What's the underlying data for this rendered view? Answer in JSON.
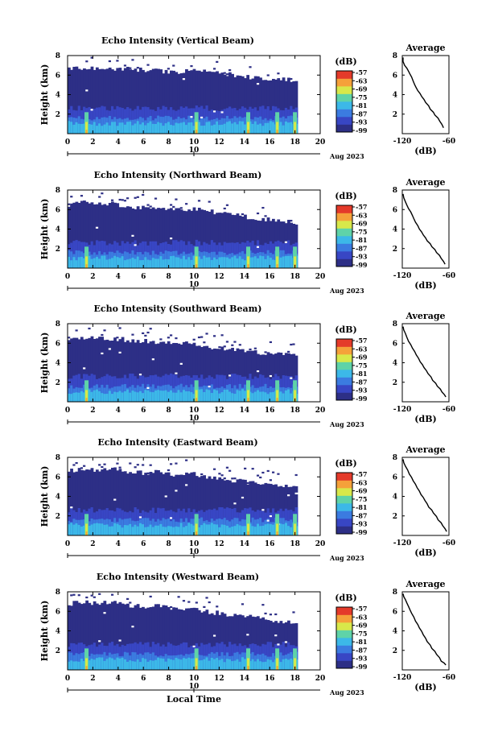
{
  "chart_data": [
    {
      "type": "heatmap",
      "title": "Echo Intensity (Vertical Beam)",
      "ylabel": "Height (km)",
      "ylim": [
        0,
        8
      ],
      "yticks": [
        2,
        4,
        6,
        8
      ],
      "xlim": [
        0,
        20
      ],
      "xticks": [
        0,
        2,
        4,
        6,
        8,
        10,
        12,
        14,
        16,
        18,
        20
      ],
      "date_marker": "10",
      "date_label": "Aug 2023",
      "top_profile": [
        6.7,
        6.7,
        6.6,
        6.7,
        6.6,
        6.5,
        6.4,
        6.3,
        6.5,
        6.3,
        6.2,
        6.0,
        5.8,
        5.7,
        5.6,
        5.5
      ],
      "colorbar": {
        "unit": "(dB)",
        "levels": [
          "-57",
          "-63",
          "-69",
          "-75",
          "-81",
          "-87",
          "-93",
          "-99"
        ]
      },
      "average_profile": {
        "title": "Average",
        "xlabel": "(dB)",
        "xlim": [
          -120,
          -60
        ],
        "xticks": [
          "-120",
          "-60"
        ],
        "yticks": [
          2,
          4,
          6,
          8
        ],
        "points": [
          [
            -119,
            7.8
          ],
          [
            -117,
            7.0
          ],
          [
            -112,
            6.4
          ],
          [
            -108,
            5.8
          ],
          [
            -104,
            5.0
          ],
          [
            -100,
            4.4
          ],
          [
            -95,
            3.8
          ],
          [
            -90,
            3.2
          ],
          [
            -84,
            2.5
          ],
          [
            -78,
            1.9
          ],
          [
            -72,
            1.3
          ],
          [
            -67,
            0.6
          ]
        ]
      }
    },
    {
      "type": "heatmap",
      "title": "Echo Intensity (Northward Beam)",
      "ylabel": "Height (km)",
      "ylim": [
        0,
        8
      ],
      "yticks": [
        2,
        4,
        6,
        8
      ],
      "xlim": [
        0,
        20
      ],
      "xticks": [
        0,
        2,
        4,
        6,
        8,
        10,
        12,
        14,
        16,
        18,
        20
      ],
      "date_marker": "10",
      "date_label": "Aug 2023",
      "top_profile": [
        6.4,
        6.7,
        6.5,
        6.6,
        6.3,
        6.2,
        6.3,
        6.0,
        6.1,
        5.9,
        5.6,
        5.4,
        5.2,
        5.0,
        4.8,
        4.7
      ],
      "colorbar": {
        "unit": "(dB)",
        "levels": [
          "-57",
          "-63",
          "-69",
          "-75",
          "-81",
          "-87",
          "-93",
          "-99"
        ]
      },
      "average_profile": {
        "title": "Average",
        "xlabel": "(dB)",
        "xlim": [
          -120,
          -60
        ],
        "xticks": [
          "-120",
          "-60"
        ],
        "yticks": [
          2,
          4,
          6,
          8
        ],
        "points": [
          [
            -119,
            7.6
          ],
          [
            -116,
            6.8
          ],
          [
            -112,
            6.1
          ],
          [
            -107,
            5.4
          ],
          [
            -103,
            4.7
          ],
          [
            -98,
            4.0
          ],
          [
            -93,
            3.4
          ],
          [
            -88,
            2.8
          ],
          [
            -82,
            2.2
          ],
          [
            -76,
            1.6
          ],
          [
            -70,
            1.0
          ],
          [
            -65,
            0.4
          ]
        ]
      }
    },
    {
      "type": "heatmap",
      "title": "Echo Intensity (Southward Beam)",
      "ylabel": "Height (km)",
      "ylim": [
        0,
        8
      ],
      "yticks": [
        2,
        4,
        6,
        8
      ],
      "xlim": [
        0,
        20
      ],
      "xticks": [
        0,
        2,
        4,
        6,
        8,
        10,
        12,
        14,
        16,
        18,
        20
      ],
      "date_marker": "10",
      "date_label": "Aug 2023",
      "top_profile": [
        6.3,
        6.6,
        6.5,
        6.5,
        6.3,
        6.2,
        6.0,
        6.1,
        6.0,
        5.6,
        5.5,
        5.3,
        5.1,
        5.0,
        4.8,
        4.7
      ],
      "colorbar": {
        "unit": "(dB)",
        "levels": [
          "-57",
          "-63",
          "-69",
          "-75",
          "-81",
          "-87",
          "-93",
          "-99"
        ]
      },
      "average_profile": {
        "title": "Average",
        "xlabel": "(dB)",
        "xlim": [
          -120,
          -60
        ],
        "xticks": [
          "-120",
          "-60"
        ],
        "yticks": [
          2,
          4,
          6,
          8
        ],
        "points": [
          [
            -119,
            7.7
          ],
          [
            -116,
            7.0
          ],
          [
            -112,
            6.2
          ],
          [
            -107,
            5.5
          ],
          [
            -102,
            4.8
          ],
          [
            -97,
            4.1
          ],
          [
            -92,
            3.5
          ],
          [
            -87,
            2.9
          ],
          [
            -81,
            2.2
          ],
          [
            -75,
            1.6
          ],
          [
            -69,
            1.0
          ],
          [
            -64,
            0.5
          ]
        ]
      }
    },
    {
      "type": "heatmap",
      "title": "Echo Intensity (Eastward Beam)",
      "ylabel": "Height (km)",
      "ylim": [
        0,
        8
      ],
      "yticks": [
        2,
        4,
        6,
        8
      ],
      "xlim": [
        0,
        20
      ],
      "xticks": [
        0,
        2,
        4,
        6,
        8,
        10,
        12,
        14,
        16,
        18,
        20
      ],
      "date_marker": "10",
      "date_label": "Aug 2023",
      "top_profile": [
        6.6,
        6.9,
        6.7,
        6.8,
        6.5,
        6.4,
        6.5,
        6.2,
        6.3,
        6.1,
        5.8,
        5.6,
        5.4,
        5.2,
        5.0,
        4.9
      ],
      "colorbar": {
        "unit": "(dB)",
        "levels": [
          "-57",
          "-63",
          "-69",
          "-75",
          "-81",
          "-87",
          "-93",
          "-99"
        ]
      },
      "average_profile": {
        "title": "Average",
        "xlabel": "(dB)",
        "xlim": [
          -120,
          -60
        ],
        "xticks": [
          "-120",
          "-60"
        ],
        "yticks": [
          2,
          4,
          6,
          8
        ],
        "points": [
          [
            -119,
            7.8
          ],
          [
            -116,
            7.1
          ],
          [
            -111,
            6.3
          ],
          [
            -106,
            5.6
          ],
          [
            -101,
            4.9
          ],
          [
            -96,
            4.2
          ],
          [
            -91,
            3.6
          ],
          [
            -86,
            2.9
          ],
          [
            -80,
            2.3
          ],
          [
            -74,
            1.6
          ],
          [
            -68,
            1.0
          ],
          [
            -63,
            0.4
          ]
        ]
      }
    },
    {
      "type": "heatmap",
      "title": "Echo Intensity (Westward Beam)",
      "ylabel": "Height (km)",
      "ylim": [
        0,
        8
      ],
      "yticks": [
        2,
        4,
        6,
        8
      ],
      "xlim": [
        0,
        20
      ],
      "xticks": [
        0,
        2,
        4,
        6,
        8,
        10,
        12,
        14,
        16,
        18,
        20
      ],
      "date_marker": "10",
      "date_label": "Aug 2023",
      "xlabel": "Local Time",
      "top_profile": [
        6.8,
        6.9,
        6.8,
        6.9,
        6.6,
        6.5,
        6.5,
        6.3,
        6.2,
        6.0,
        5.8,
        5.6,
        5.4,
        5.2,
        5.0,
        4.8
      ],
      "colorbar": {
        "unit": "(dB)",
        "levels": [
          "-57",
          "-63",
          "-69",
          "-75",
          "-81",
          "-87",
          "-93",
          "-99"
        ]
      },
      "average_profile": {
        "title": "Average",
        "xlabel": "(dB)",
        "xlim": [
          -120,
          -60
        ],
        "xticks": [
          "-120",
          "-60"
        ],
        "yticks": [
          2,
          4,
          6,
          8
        ],
        "points": [
          [
            -119,
            7.8
          ],
          [
            -116,
            7.2
          ],
          [
            -112,
            6.5
          ],
          [
            -108,
            5.8
          ],
          [
            -103,
            5.0
          ],
          [
            -98,
            4.3
          ],
          [
            -93,
            3.6
          ],
          [
            -88,
            2.9
          ],
          [
            -82,
            2.2
          ],
          [
            -76,
            1.6
          ],
          [
            -70,
            0.9
          ],
          [
            -64,
            0.5
          ]
        ]
      }
    }
  ],
  "colors": {
    "colorbar": [
      "#2d2f86",
      "#3846c4",
      "#3b7be0",
      "#3cb8e8",
      "#5fd3a8",
      "#d8e84a",
      "#f5a13a",
      "#e43a2a"
    ],
    "background_echo": "#2f3488"
  }
}
